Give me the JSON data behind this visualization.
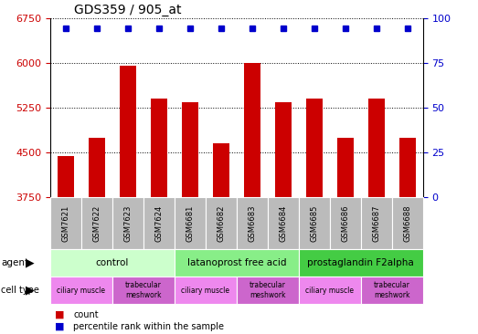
{
  "title": "GDS359 / 905_at",
  "samples": [
    "GSM7621",
    "GSM7622",
    "GSM7623",
    "GSM7624",
    "GSM6681",
    "GSM6682",
    "GSM6683",
    "GSM6684",
    "GSM6685",
    "GSM6686",
    "GSM6687",
    "GSM6688"
  ],
  "counts": [
    4450,
    4750,
    5950,
    5400,
    5350,
    4650,
    6000,
    5350,
    5400,
    4750,
    5400,
    4750
  ],
  "ymin": 3750,
  "ymax": 6750,
  "yticks": [
    3750,
    4500,
    5250,
    6000,
    6750
  ],
  "y2ticks": [
    0,
    25,
    50,
    75,
    100
  ],
  "bar_color": "#cc0000",
  "dot_color": "#0000cc",
  "agents": [
    {
      "label": "control",
      "start": 0,
      "end": 4,
      "color": "#ccffcc"
    },
    {
      "label": "latanoprost free acid",
      "start": 4,
      "end": 8,
      "color": "#88ee88"
    },
    {
      "label": "prostaglandin F2alpha",
      "start": 8,
      "end": 12,
      "color": "#44cc44"
    }
  ],
  "cell_types": [
    {
      "label": "ciliary muscle",
      "start": 0,
      "end": 2,
      "color": "#ee88ee"
    },
    {
      "label": "trabecular\nmeshwork",
      "start": 2,
      "end": 4,
      "color": "#cc66cc"
    },
    {
      "label": "ciliary muscle",
      "start": 4,
      "end": 6,
      "color": "#ee88ee"
    },
    {
      "label": "trabecular\nmeshwork",
      "start": 6,
      "end": 8,
      "color": "#cc66cc"
    },
    {
      "label": "ciliary muscle",
      "start": 8,
      "end": 10,
      "color": "#ee88ee"
    },
    {
      "label": "trabecular\nmeshwork",
      "start": 10,
      "end": 12,
      "color": "#cc66cc"
    }
  ],
  "ylabel_color": "#cc0000",
  "y2label_color": "#0000cc",
  "sample_box_color": "#bbbbbb",
  "legend_count_color": "#cc0000",
  "legend_pct_color": "#0000cc"
}
